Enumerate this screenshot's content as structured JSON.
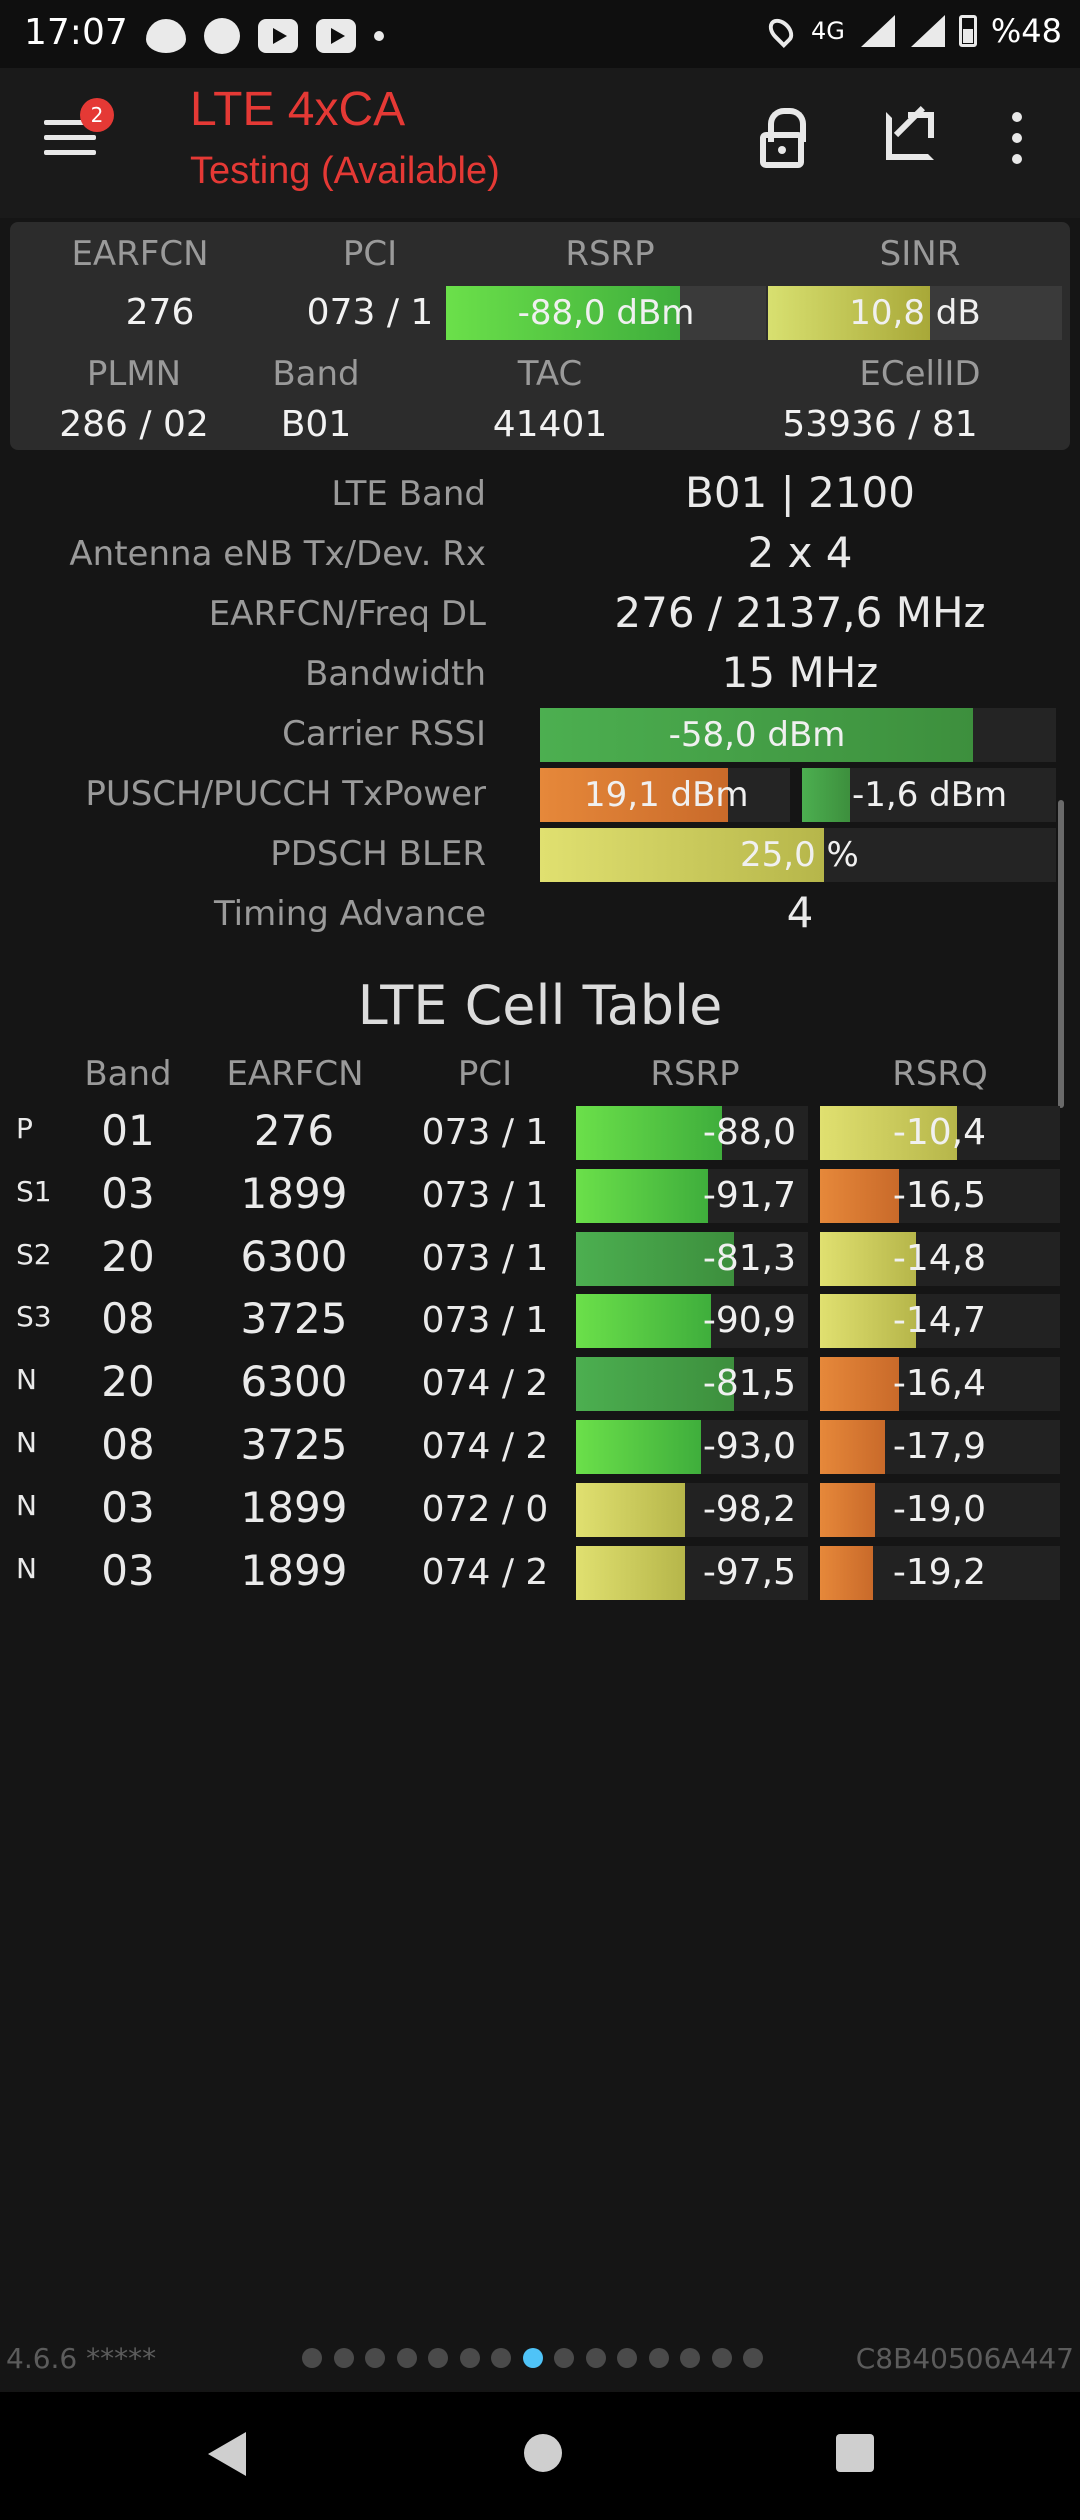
{
  "status_bar": {
    "time": "17:07",
    "network": "4G",
    "battery": "%48"
  },
  "app_bar": {
    "title": "LTE 4xCA",
    "subtitle": "Testing (Available)",
    "badge_count": "2"
  },
  "summary": {
    "labels": {
      "earfcn": "EARFCN",
      "pci": "PCI",
      "rsrp": "RSRP",
      "sinr": "SINR",
      "plmn": "PLMN",
      "band": "Band",
      "tac": "TAC",
      "ecellid": "ECellID"
    },
    "values": {
      "earfcn": "276",
      "pci": "073 / 1",
      "rsrp": "-88,0 dBm",
      "sinr": "10,8 dB",
      "plmn": "286 / 02",
      "band": "B01",
      "tac": "41401",
      "ecellid": "53936 / 81"
    },
    "rsrp_fill": 0.73,
    "sinr_fill": 0.55
  },
  "details": {
    "lte_band": {
      "label": "LTE Band",
      "value": "B01 | 2100"
    },
    "antenna": {
      "label": "Antenna eNB Tx/Dev. Rx",
      "value": "2 x 4"
    },
    "earfcn_freq": {
      "label": "EARFCN/Freq DL",
      "value": "276 / 2137,6 MHz"
    },
    "bandwidth": {
      "label": "Bandwidth",
      "value": "15 MHz"
    },
    "carrier_rssi": {
      "label": "Carrier RSSI",
      "value": "-58,0 dBm",
      "fill": 0.84
    },
    "tx_power": {
      "label": "PUSCH/PUCCH TxPower",
      "pusch": "19,1 dBm",
      "pucch": "-1,6 dBm",
      "pusch_fill": 0.75,
      "pucch_fill": 0.19
    },
    "bler": {
      "label": "PDSCH BLER",
      "value": "25,0",
      "unit": "%",
      "fill": 0.55
    },
    "timing_advance": {
      "label": "Timing Advance",
      "value": "4"
    }
  },
  "cell_table": {
    "title": "LTE Cell Table",
    "headers": {
      "band": "Band",
      "earfcn": "EARFCN",
      "pci": "PCI",
      "rsrp": "RSRP",
      "rsrq": "RSRQ"
    },
    "rows": [
      {
        "type": "P",
        "band": "01",
        "earfcn": "276",
        "pci": "073 / 1",
        "rsrp": "-88,0",
        "rsrq": "-10,4",
        "rsrp_fill": 0.63,
        "rsrq_fill": 0.57
      },
      {
        "type": "S1",
        "band": "03",
        "earfcn": "1899",
        "pci": "073 / 1",
        "rsrp": "-91,7",
        "rsrq": "-16,5",
        "rsrp_fill": 0.57,
        "rsrq_fill": 0.33
      },
      {
        "type": "S2",
        "band": "20",
        "earfcn": "6300",
        "pci": "073 / 1",
        "rsrp": "-81,3",
        "rsrq": "-14,8",
        "rsrp_fill": 0.68,
        "rsrq_fill": 0.4
      },
      {
        "type": "S3",
        "band": "08",
        "earfcn": "3725",
        "pci": "073 / 1",
        "rsrp": "-90,9",
        "rsrq": "-14,7",
        "rsrp_fill": 0.58,
        "rsrq_fill": 0.4
      },
      {
        "type": "N",
        "band": "20",
        "earfcn": "6300",
        "pci": "074 / 2",
        "rsrp": "-81,5",
        "rsrq": "-16,4",
        "rsrp_fill": 0.68,
        "rsrq_fill": 0.33
      },
      {
        "type": "N",
        "band": "08",
        "earfcn": "3725",
        "pci": "074 / 2",
        "rsrp": "-93,0",
        "rsrq": "-17,9",
        "rsrp_fill": 0.54,
        "rsrq_fill": 0.27
      },
      {
        "type": "N",
        "band": "03",
        "earfcn": "1899",
        "pci": "072 / 0",
        "rsrp": "-98,2",
        "rsrq": "-19,0",
        "rsrp_fill": 0.47,
        "rsrq_fill": 0.23
      },
      {
        "type": "N",
        "band": "03",
        "earfcn": "1899",
        "pci": "074 / 2",
        "rsrp": "-97,5",
        "rsrq": "-19,2",
        "rsrp_fill": 0.47,
        "rsrq_fill": 0.22
      }
    ]
  },
  "footer": {
    "version": "4.6.6 *****",
    "device_id": "C8B40506A447",
    "page_count": 15,
    "active_page": 8
  },
  "colors": {
    "accent_red": "#e53935",
    "pager_active": "#4fc3f7"
  }
}
